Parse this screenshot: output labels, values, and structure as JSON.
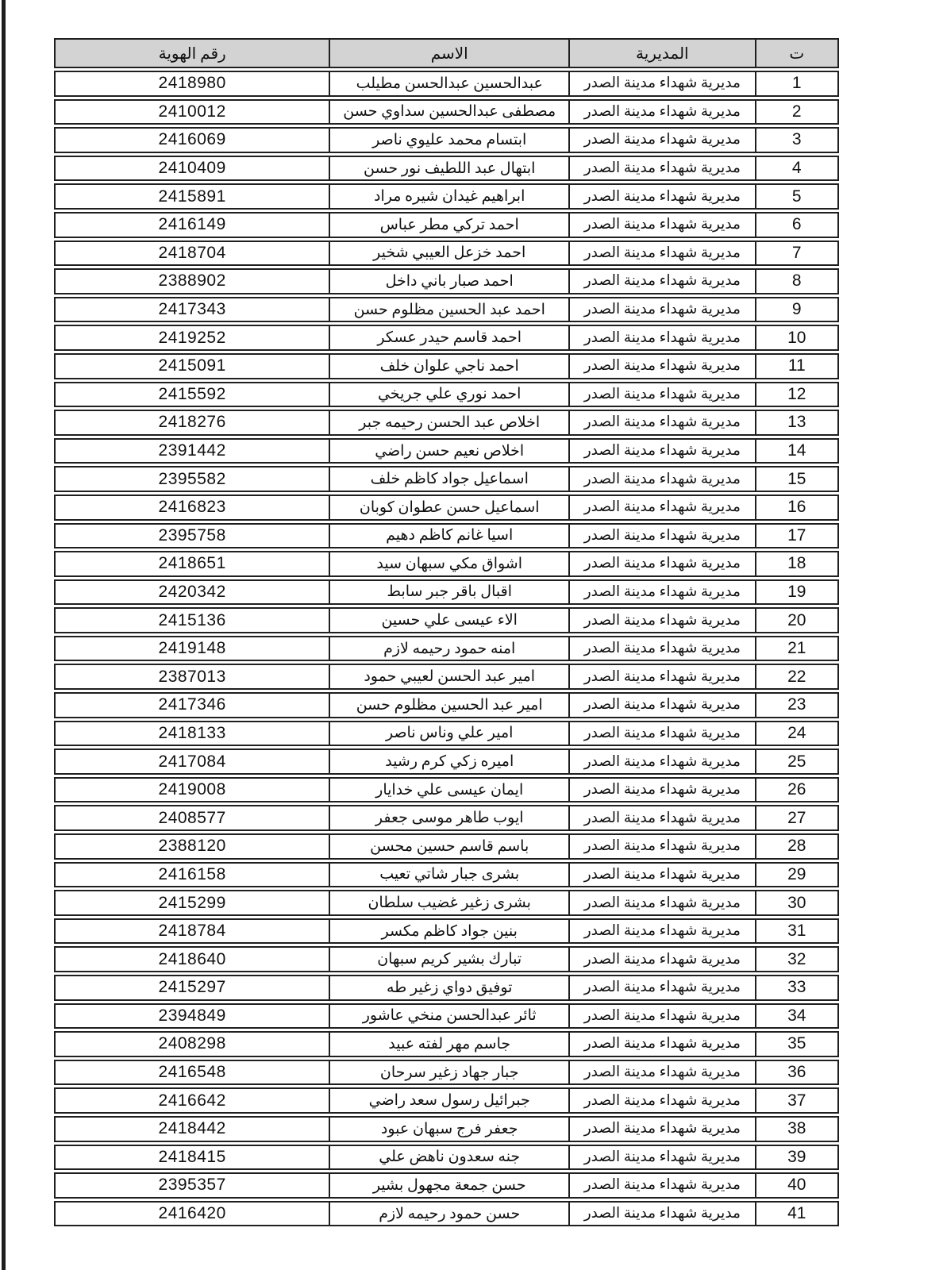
{
  "page": {
    "background_color": "#ffffff",
    "artifact_strip_color": "#1d1d20"
  },
  "table": {
    "header_bg_color": "#d3d3d3",
    "border_color": "#1f1f1f",
    "columns": {
      "serial": "ت",
      "directorate": "المديرية",
      "name": "الاسم",
      "id": "رقم الهوية"
    },
    "shared_directorate": "مديرية شهداء مدينة الصدر",
    "rows": [
      {
        "serial": "1",
        "name": "عبدالحسين عبدالحسن مطيلب",
        "id": "2418980"
      },
      {
        "serial": "2",
        "name": "مصطفى عبدالحسين سداوي حسن",
        "id": "2410012"
      },
      {
        "serial": "3",
        "name": "ابتسام محمد عليوي ناصر",
        "id": "2416069"
      },
      {
        "serial": "4",
        "name": "ابتهال عبد اللطيف نور حسن",
        "id": "2410409"
      },
      {
        "serial": "5",
        "name": "ابراهيم غيدان شيره مراد",
        "id": "2415891"
      },
      {
        "serial": "6",
        "name": "احمد تركي مطر عباس",
        "id": "2416149"
      },
      {
        "serial": "7",
        "name": "احمد خزعل العيبي شخير",
        "id": "2418704"
      },
      {
        "serial": "8",
        "name": "احمد صبار باني داخل",
        "id": "2388902"
      },
      {
        "serial": "9",
        "name": "احمد عبد الحسين مظلوم حسن",
        "id": "2417343"
      },
      {
        "serial": "10",
        "name": "احمد قاسم حيدر عسكر",
        "id": "2419252"
      },
      {
        "serial": "11",
        "name": "احمد ناجي علوان خلف",
        "id": "2415091"
      },
      {
        "serial": "12",
        "name": "احمد نوري علي جريخي",
        "id": "2415592"
      },
      {
        "serial": "13",
        "name": "اخلاص عبد الحسن رحيمه جبر",
        "id": "2418276"
      },
      {
        "serial": "14",
        "name": "اخلاص نعيم حسن راضي",
        "id": "2391442"
      },
      {
        "serial": "15",
        "name": "اسماعيل جواد كاظم خلف",
        "id": "2395582"
      },
      {
        "serial": "16",
        "name": "اسماعيل حسن عطوان كوبان",
        "id": "2416823"
      },
      {
        "serial": "17",
        "name": "اسيا غانم كاظم دهيم",
        "id": "2395758"
      },
      {
        "serial": "18",
        "name": "اشواق مكي سبهان سيد",
        "id": "2418651"
      },
      {
        "serial": "19",
        "name": "اقبال باقر جبر سابط",
        "id": "2420342"
      },
      {
        "serial": "20",
        "name": "الاء عيسى علي حسين",
        "id": "2415136"
      },
      {
        "serial": "21",
        "name": "امنه حمود رحيمه لازم",
        "id": "2419148"
      },
      {
        "serial": "22",
        "name": "امير عبد الحسن لعيبي حمود",
        "id": "2387013"
      },
      {
        "serial": "23",
        "name": "امير عبد الحسين مظلوم حسن",
        "id": "2417346"
      },
      {
        "serial": "24",
        "name": "امير علي وناس ناصر",
        "id": "2418133"
      },
      {
        "serial": "25",
        "name": "اميره زكي كرم رشيد",
        "id": "2417084"
      },
      {
        "serial": "26",
        "name": "ايمان عيسى علي خدايار",
        "id": "2419008"
      },
      {
        "serial": "27",
        "name": "ايوب طاهر موسى جعفر",
        "id": "2408577"
      },
      {
        "serial": "28",
        "name": "باسم قاسم حسين محسن",
        "id": "2388120"
      },
      {
        "serial": "29",
        "name": "بشرى جبار شاتي تعيب",
        "id": "2416158"
      },
      {
        "serial": "30",
        "name": "بشرى زغير غضيب سلطان",
        "id": "2415299"
      },
      {
        "serial": "31",
        "name": "بنين جواد كاظم مكسر",
        "id": "2418784"
      },
      {
        "serial": "32",
        "name": "تبارك بشير كريم سبهان",
        "id": "2418640"
      },
      {
        "serial": "33",
        "name": "توفيق دواي زغير طه",
        "id": "2415297"
      },
      {
        "serial": "34",
        "name": "ثائر عبدالحسن منخي عاشور",
        "id": "2394849"
      },
      {
        "serial": "35",
        "name": "جاسم مهر لفته عبيد",
        "id": "2408298"
      },
      {
        "serial": "36",
        "name": "جبار جهاد زغير سرحان",
        "id": "2416548"
      },
      {
        "serial": "37",
        "name": "جبرائيل رسول سعد راضي",
        "id": "2416642"
      },
      {
        "serial": "38",
        "name": "جعفر فرج سبهان عبود",
        "id": "2418442"
      },
      {
        "serial": "39",
        "name": "جنه سعدون ناهض علي",
        "id": "2418415"
      },
      {
        "serial": "40",
        "name": "حسن جمعة مجهول بشير",
        "id": "2395357"
      },
      {
        "serial": "41",
        "name": "حسن حمود رحيمه لازم",
        "id": "2416420"
      }
    ]
  }
}
